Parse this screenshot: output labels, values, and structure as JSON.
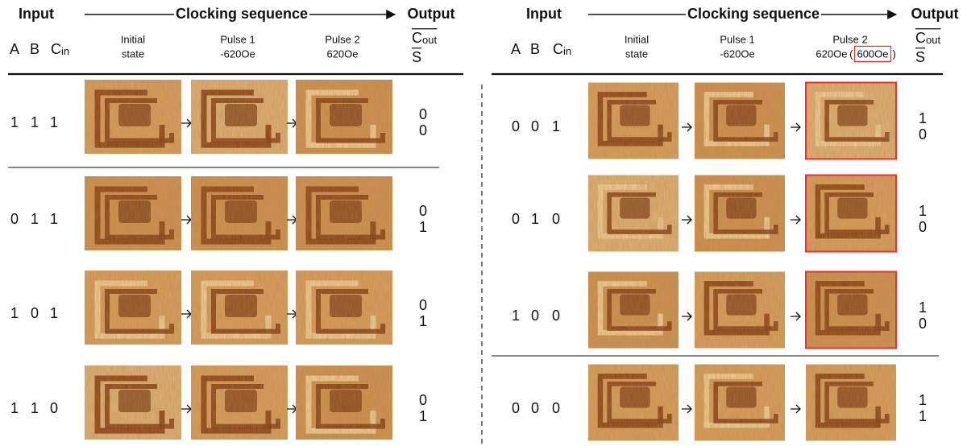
{
  "panels": [
    {
      "header": {
        "input": "Input",
        "sequence": "Clocking sequence",
        "output": "Output"
      },
      "columns": {
        "a": "A",
        "b": "B",
        "cin": "C",
        "cin_sub": "in",
        "initial": [
          "Initial",
          "state"
        ],
        "pulse1": [
          "Pulse 1",
          "-620Oe"
        ],
        "pulse2": [
          "Pulse 2",
          "620Oe"
        ],
        "cout": "C",
        "cout_sub": "out",
        "s": "S"
      },
      "rows": [
        {
          "inputs": [
            1,
            1,
            1
          ],
          "outputs": [
            0,
            0
          ]
        },
        {
          "inputs": [
            0,
            1,
            1
          ],
          "outputs": [
            0,
            1
          ]
        },
        {
          "inputs": [
            1,
            0,
            1
          ],
          "outputs": [
            0,
            1
          ]
        },
        {
          "inputs": [
            1,
            1,
            0
          ],
          "outputs": [
            0,
            1
          ]
        }
      ]
    },
    {
      "header": {
        "input": "Input",
        "sequence": "Clocking sequence",
        "output": "Output"
      },
      "columns": {
        "a": "A",
        "b": "B",
        "cin": "C",
        "cin_sub": "in",
        "initial": [
          "Initial",
          "state"
        ],
        "pulse1": [
          "Pulse 1",
          "-620Oe"
        ],
        "pulse2": [
          "Pulse 2",
          "620Oe"
        ],
        "pulse2_note": {
          "open": "(",
          "value": "600Oe",
          "close": ")"
        },
        "cout": "C",
        "cout_sub": "out",
        "s": "S"
      },
      "rows": [
        {
          "inputs": [
            0,
            0,
            1
          ],
          "outputs": [
            1,
            0
          ]
        },
        {
          "inputs": [
            0,
            1,
            0
          ],
          "outputs": [
            1,
            0
          ]
        },
        {
          "inputs": [
            1,
            0,
            0
          ],
          "outputs": [
            1,
            0
          ]
        },
        {
          "inputs": [
            0,
            0,
            0
          ],
          "outputs": [
            1,
            1
          ]
        }
      ]
    }
  ]
}
